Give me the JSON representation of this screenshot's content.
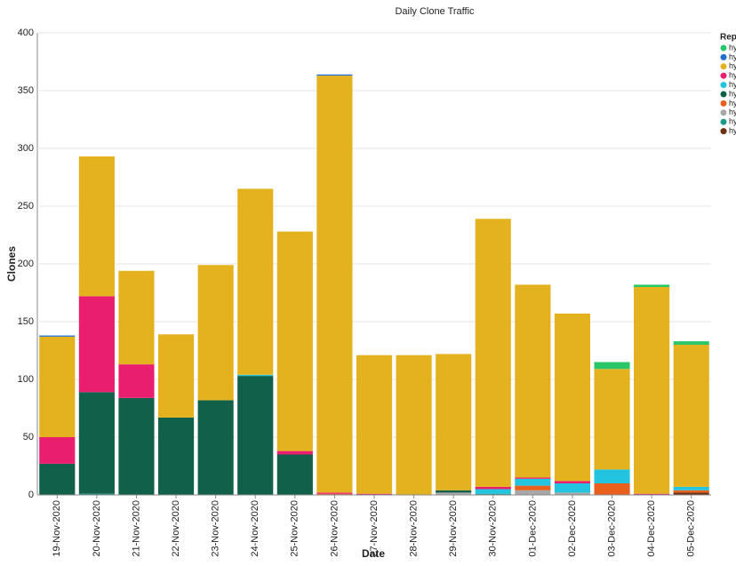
{
  "chart_data": {
    "type": "stacked_bar",
    "title": "Daily Clone Traffic",
    "x_label": "Date",
    "y_label": "Clones",
    "legend_title": "Repo",
    "categories": [
      "19-Nov-2020",
      "20-Nov-2020",
      "21-Nov-2020",
      "22-Nov-2020",
      "23-Nov-2020",
      "24-Nov-2020",
      "25-Nov-2020",
      "26-Nov-2020",
      "27-Nov-2020",
      "28-Nov-2020",
      "29-Nov-2020",
      "30-Nov-2020",
      "01-Dec-2020",
      "02-Dec-2020",
      "03-Dec-2020",
      "04-Dec-2020",
      "05-Dec-2020"
    ],
    "series": [
      {
        "name": "hy",
        "color": "#2ac769",
        "values": [
          0,
          0,
          0,
          0,
          0,
          0,
          0,
          0,
          0,
          0,
          0,
          0,
          0,
          0,
          6,
          2,
          3
        ]
      },
      {
        "name": "hy",
        "color": "#1f6fd0",
        "values": [
          1,
          0,
          0,
          0,
          0,
          0,
          0,
          1,
          0,
          0,
          0,
          0,
          0,
          0,
          0,
          0,
          0
        ]
      },
      {
        "name": "hy",
        "color": "#e5b21f",
        "values": [
          87,
          121,
          81,
          72,
          117,
          161,
          190,
          361,
          120,
          121,
          118,
          232,
          167,
          145,
          87,
          179,
          123
        ]
      },
      {
        "name": "hy",
        "color": "#e91e6e",
        "values": [
          23,
          83,
          29,
          0,
          0,
          0,
          3,
          1,
          1,
          0,
          0,
          2,
          1,
          2,
          0,
          1,
          0
        ]
      },
      {
        "name": "hy",
        "color": "#22c4e0",
        "values": [
          0,
          0,
          0,
          0,
          0,
          1,
          0,
          0,
          0,
          0,
          0,
          4,
          6,
          8,
          12,
          0,
          3
        ]
      },
      {
        "name": "hy",
        "color": "#11614a",
        "values": [
          27,
          88,
          84,
          67,
          82,
          103,
          35,
          0,
          0,
          0,
          2,
          0,
          0,
          0,
          0,
          0,
          0
        ]
      },
      {
        "name": "hy",
        "color": "#e8601c",
        "values": [
          0,
          0,
          0,
          0,
          0,
          0,
          0,
          1,
          0,
          0,
          0,
          0,
          4,
          0,
          10,
          0,
          2
        ]
      },
      {
        "name": "hy",
        "color": "#a8a8a8",
        "values": [
          0,
          0,
          0,
          0,
          0,
          0,
          0,
          0,
          0,
          0,
          2,
          0,
          4,
          2,
          0,
          0,
          0
        ]
      },
      {
        "name": "hy",
        "color": "#1a9a8a",
        "values": [
          0,
          1,
          0,
          0,
          0,
          0,
          0,
          0,
          0,
          0,
          0,
          1,
          0,
          0,
          0,
          0,
          0
        ]
      },
      {
        "name": "hy",
        "color": "#6b3010",
        "values": [
          0,
          0,
          0,
          0,
          0,
          0,
          0,
          0,
          0,
          0,
          0,
          0,
          0,
          0,
          0,
          0,
          2
        ]
      }
    ],
    "ylim": [
      0,
      400
    ],
    "yticks": [
      0,
      50,
      100,
      150,
      200,
      250,
      300,
      350,
      400
    ],
    "grid": true
  }
}
